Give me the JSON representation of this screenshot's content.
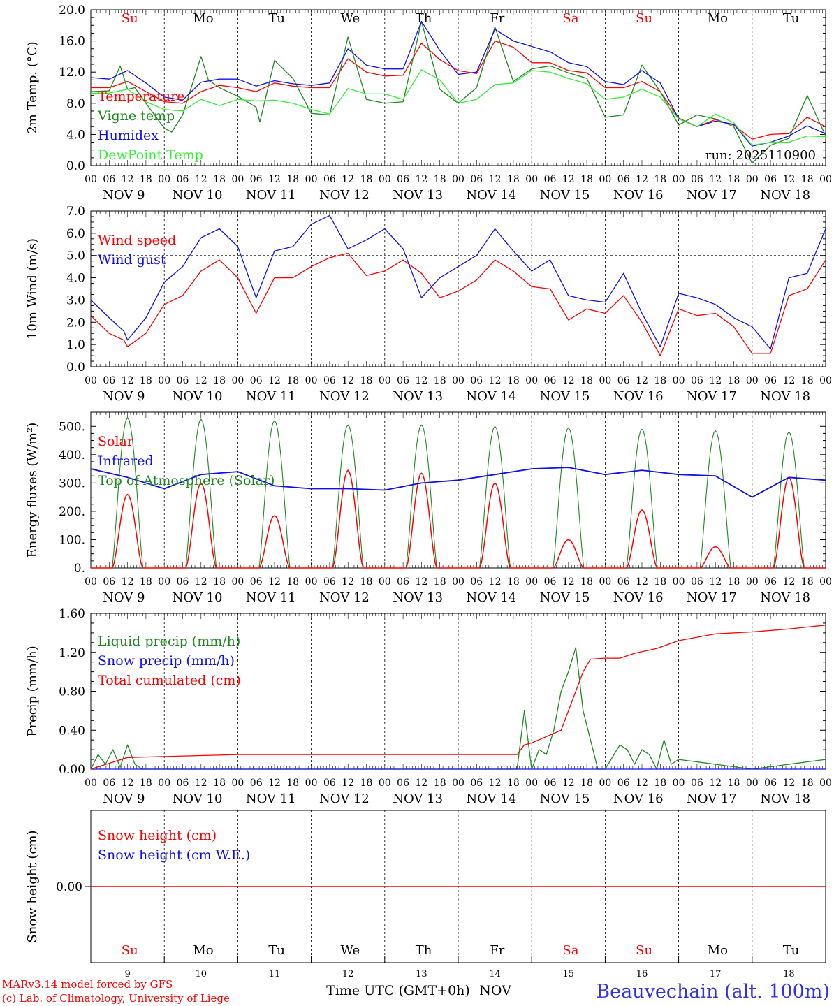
{
  "colors": {
    "red": "#ff0000",
    "darkgreen": "#1f8a1f",
    "blue": "#1010ee",
    "lightgreen": "#33ee33",
    "black": "#000000",
    "station": "#3030ee"
  },
  "days": [
    "Su",
    "Mo",
    "Tu",
    "We",
    "Th",
    "Fr",
    "Sa",
    "Su",
    "Mo",
    "Tu"
  ],
  "weekend_flags": [
    true,
    false,
    false,
    false,
    false,
    false,
    true,
    true,
    false,
    false
  ],
  "date_labels": [
    "NOV  9",
    "NOV 10",
    "NOV 11",
    "NOV 12",
    "NOV 13",
    "NOV 14",
    "NOV 15",
    "NOV 16",
    "NOV 17",
    "NOV 18"
  ],
  "hour_ticks": [
    "00",
    "06",
    "12",
    "18"
  ],
  "bottom_days": [
    "9",
    "10",
    "11",
    "12",
    "13",
    "14",
    "15",
    "16",
    "17",
    "18"
  ],
  "run_label": "run: 2025110900",
  "footer": {
    "model": "MARv3.14 model forced by GFS",
    "lab": "(c) Lab. of Climatology, University of Liege",
    "axis": "Time UTC (GMT+0h)",
    "month": "NOV",
    "station": "Beauvechain (alt. 100m)"
  },
  "chart_data": [
    {
      "id": "temp",
      "type": "line",
      "ylabel": "2m Temp. (°C)",
      "ylim": [
        0,
        20
      ],
      "yticks": [
        "0.0",
        "4.0",
        "8.0",
        "12.0",
        "16.0",
        "20.0"
      ],
      "x_unit": "days since Nov 9 00 UTC",
      "xlim": [
        0,
        10
      ],
      "series": [
        {
          "name": "Temperature",
          "color": "red",
          "x": [
            0,
            0.25,
            0.5,
            0.75,
            1,
            1.25,
            1.5,
            1.75,
            2,
            2.25,
            2.5,
            2.75,
            3,
            3.25,
            3.5,
            3.75,
            4,
            4.25,
            4.5,
            4.75,
            5,
            5.25,
            5.5,
            5.75,
            6,
            6.25,
            6.5,
            6.75,
            7,
            7.25,
            7.5,
            7.75,
            8,
            8.25,
            8.5,
            8.75,
            9,
            9.25,
            9.5,
            9.75,
            10
          ],
          "y": [
            10,
            10,
            10.8,
            9.5,
            8.2,
            8,
            9.5,
            10.3,
            10,
            9.5,
            10.6,
            10.2,
            10,
            10,
            13.7,
            12,
            11.5,
            11.6,
            15.7,
            13.6,
            12.2,
            11.8,
            16,
            15.2,
            13.2,
            13.2,
            12.2,
            11.9,
            10,
            10,
            10.8,
            9.5,
            6.1,
            5,
            5.9,
            5.2,
            3.4,
            4,
            4.1,
            6.2,
            5
          ]
        },
        {
          "name": "Vigne temp",
          "color": "darkgreen",
          "x": [
            0,
            0.25,
            0.4,
            0.5,
            0.6,
            0.75,
            1,
            1.1,
            1.25,
            1.5,
            1.6,
            1.75,
            2,
            2.25,
            2.3,
            2.5,
            2.75,
            3,
            3.25,
            3.5,
            3.75,
            4,
            4.25,
            4.5,
            4.75,
            5,
            5.25,
            5.5,
            5.75,
            6,
            6.25,
            6.5,
            6.75,
            7,
            7.25,
            7.5,
            7.75,
            8,
            8.25,
            8.5,
            8.75,
            9,
            9.25,
            9.5,
            9.75,
            10
          ],
          "y": [
            9.5,
            9.6,
            12.8,
            9.8,
            10,
            8,
            4.8,
            4.3,
            6.5,
            14,
            11,
            10,
            8.9,
            7.5,
            5.6,
            13.5,
            11.2,
            6.7,
            6.5,
            16.5,
            8.5,
            8,
            8.2,
            18.5,
            9.8,
            8,
            10,
            17.8,
            10.8,
            12.4,
            12.8,
            11.9,
            11.2,
            6.2,
            6.5,
            12.9,
            9.5,
            5.2,
            6.5,
            6,
            5,
            0.3,
            2.6,
            3.5,
            9,
            3.8
          ]
        },
        {
          "name": "Humidex",
          "color": "blue",
          "x": [
            0,
            0.25,
            0.5,
            0.75,
            1,
            1.25,
            1.5,
            1.75,
            2,
            2.25,
            2.5,
            2.75,
            3,
            3.25,
            3.5,
            3.75,
            4,
            4.25,
            4.5,
            4.75,
            5,
            5.25,
            5.5,
            5.75,
            6,
            6.25,
            6.5,
            6.75,
            7,
            7.25,
            7.5,
            7.75,
            8,
            8.25,
            8.5,
            8.75,
            9,
            9.25,
            9.5,
            9.75,
            10
          ],
          "y": [
            11.3,
            11.1,
            12.2,
            10.6,
            8.8,
            8.4,
            10.7,
            11.1,
            11.1,
            10.2,
            10.9,
            10.5,
            10.3,
            10.6,
            15,
            12.9,
            12.4,
            12.4,
            18.5,
            14.8,
            11.7,
            12,
            17.5,
            16,
            15.3,
            14.6,
            13.2,
            12.7,
            10.8,
            10.4,
            12.2,
            10.6,
            6,
            5,
            5.7,
            5.3,
            2.5,
            3,
            3.8,
            5.1,
            4.1
          ]
        },
        {
          "name": "DewPoint Temp",
          "color": "lightgreen",
          "x": [
            0,
            0.25,
            0.5,
            0.75,
            1,
            1.25,
            1.5,
            1.75,
            2,
            2.25,
            2.5,
            2.75,
            3,
            3.25,
            3.5,
            3.75,
            4,
            4.25,
            4.5,
            4.75,
            5,
            5.25,
            5.5,
            5.75,
            6,
            6.25,
            6.5,
            6.75,
            7,
            7.25,
            7.5,
            7.75,
            8,
            8.25,
            8.5,
            8.75,
            9,
            9.25,
            9.5,
            9.75,
            10
          ],
          "y": [
            9.3,
            9.3,
            9.8,
            8.2,
            7.2,
            7,
            8.5,
            7.7,
            8.5,
            8.3,
            8.4,
            8,
            7.2,
            6.6,
            9.9,
            9.2,
            9.2,
            8.5,
            12.3,
            11,
            8,
            8.5,
            10.4,
            10.6,
            12.2,
            12,
            11.2,
            10.5,
            8.5,
            8.8,
            9.8,
            8.8,
            6,
            5,
            6.6,
            5.5,
            2.6,
            3,
            3,
            3.8,
            3.7
          ]
        }
      ],
      "legend": [
        "Temperature",
        "Vigne temp",
        "Humidex",
        "DewPoint Temp"
      ]
    },
    {
      "id": "wind",
      "type": "line",
      "ylabel": "10m Wind (m/s)",
      "ylim": [
        0,
        7
      ],
      "yticks": [
        "0.0",
        "1.0",
        "2.0",
        "3.0",
        "4.0",
        "5.0",
        "6.0",
        "7.0"
      ],
      "xlim": [
        0,
        10
      ],
      "reference_line": 5,
      "series": [
        {
          "name": "Wind speed",
          "color": "red",
          "x": [
            0,
            0.25,
            0.45,
            0.5,
            0.75,
            1,
            1.25,
            1.5,
            1.75,
            2,
            2.25,
            2.5,
            2.75,
            3,
            3.25,
            3.5,
            3.75,
            4,
            4.25,
            4.5,
            4.75,
            5,
            5.25,
            5.5,
            5.75,
            6,
            6.25,
            6.5,
            6.75,
            7,
            7.25,
            7.5,
            7.75,
            8,
            8.25,
            8.5,
            8.75,
            9,
            9.25,
            9.5,
            9.75,
            10
          ],
          "y": [
            2.3,
            1.5,
            1.2,
            0.9,
            1.5,
            2.8,
            3.2,
            4.3,
            4.8,
            4,
            2.4,
            4,
            4,
            4.5,
            4.9,
            5.1,
            4.1,
            4.3,
            4.8,
            4.2,
            3.1,
            3.4,
            3.9,
            4.8,
            4.3,
            3.6,
            3.5,
            2.1,
            2.6,
            2.4,
            3.2,
            2,
            0.5,
            2.6,
            2.3,
            2.4,
            1.8,
            0.6,
            0.6,
            3.2,
            3.5,
            4.8
          ]
        },
        {
          "name": "Wind gust",
          "color": "blue",
          "x": [
            0,
            0.25,
            0.45,
            0.5,
            0.75,
            1,
            1.25,
            1.5,
            1.75,
            2,
            2.25,
            2.5,
            2.75,
            3,
            3.25,
            3.5,
            3.75,
            4,
            4.25,
            4.5,
            4.75,
            5,
            5.25,
            5.5,
            5.75,
            6,
            6.25,
            6.5,
            6.75,
            7,
            7.25,
            7.5,
            7.75,
            8,
            8.25,
            8.5,
            8.75,
            9,
            9.25,
            9.5,
            9.75,
            10
          ],
          "y": [
            3,
            2.2,
            1.6,
            1.2,
            2.2,
            3.8,
            4.5,
            5.8,
            6.2,
            5.4,
            3.1,
            5.2,
            5.4,
            6.4,
            6.8,
            5.3,
            5.7,
            6.2,
            5.3,
            3.1,
            4,
            4.5,
            5,
            6.2,
            5.2,
            4.3,
            4.8,
            3.2,
            3,
            2.9,
            4.2,
            2.4,
            0.9,
            3.3,
            3.1,
            2.8,
            2.2,
            1.8,
            0.8,
            4,
            4.2,
            6.2
          ]
        }
      ],
      "legend": [
        "Wind speed",
        "Wind gust"
      ]
    },
    {
      "id": "flux",
      "type": "line",
      "ylabel": "Energy fluxes (W/m²)",
      "ylim": [
        0,
        550
      ],
      "yticks": [
        "0.",
        "100.",
        "200.",
        "300.",
        "400.",
        "500."
      ],
      "xlim": [
        0,
        10
      ],
      "solar_peaks": [
        260,
        300,
        185,
        345,
        335,
        300,
        100,
        205,
        75,
        320
      ],
      "toa_peaks": [
        530,
        525,
        520,
        505,
        505,
        500,
        495,
        490,
        485,
        480
      ],
      "series": [
        {
          "name": "Solar",
          "color": "red"
        },
        {
          "name": "Infrared",
          "color": "blue",
          "x": [
            0,
            0.5,
            1,
            1.5,
            2,
            2.5,
            3,
            3.5,
            4,
            4.5,
            5,
            5.5,
            6,
            6.5,
            7,
            7.5,
            8,
            8.5,
            9,
            9.5,
            10
          ],
          "y": [
            350,
            320,
            280,
            330,
            340,
            290,
            280,
            280,
            275,
            300,
            310,
            330,
            350,
            355,
            330,
            345,
            330,
            325,
            250,
            320,
            310
          ]
        },
        {
          "name": "Top of Atmosphere (Solar)",
          "color": "darkgreen"
        }
      ],
      "legend": [
        "Solar",
        "Infrared",
        "Top of Atmosphere (Solar)"
      ]
    },
    {
      "id": "precip",
      "type": "line",
      "ylabel": "Precip (mm/h)",
      "ylim": [
        0,
        1.6
      ],
      "yticks": [
        "0.00",
        "0.40",
        "0.80",
        "1.20",
        "1.60"
      ],
      "xlim": [
        0,
        10
      ],
      "series": [
        {
          "name": "Liquid precip (mm/h)",
          "color": "darkgreen",
          "x": [
            0,
            0.1,
            0.2,
            0.3,
            0.4,
            0.5,
            0.6,
            0.7,
            0.8,
            1,
            2,
            3,
            4,
            5,
            5.8,
            5.9,
            5.95,
            6,
            6.1,
            6.2,
            6.3,
            6.4,
            6.5,
            6.6,
            6.7,
            6.8,
            6.9,
            7,
            7.2,
            7.3,
            7.4,
            7.5,
            7.6,
            7.7,
            7.8,
            7.9,
            8,
            8.5,
            9,
            9.5,
            10
          ],
          "y": [
            0,
            0.15,
            0.05,
            0.2,
            0.02,
            0.25,
            0.05,
            0,
            0,
            0,
            0,
            0,
            0,
            0,
            0,
            0.6,
            0.3,
            0,
            0.2,
            0.15,
            0.4,
            0.8,
            1.0,
            1.25,
            0.6,
            0.3,
            0,
            0,
            0.25,
            0.2,
            0.05,
            0.2,
            0.15,
            0,
            0.3,
            0.05,
            0.1,
            0.05,
            0,
            0.05,
            0.1
          ]
        },
        {
          "name": "Snow precip (mm/h)",
          "color": "blue",
          "x": [
            0,
            10
          ],
          "y": [
            0,
            0
          ]
        },
        {
          "name": "Total cumulated (cm)",
          "color": "red",
          "x": [
            0,
            0.5,
            1,
            2,
            3,
            4,
            5,
            5.8,
            5.9,
            6,
            6.4,
            6.7,
            6.8,
            7,
            7.2,
            7.4,
            7.7,
            8,
            8.5,
            9,
            9.5,
            10
          ],
          "y": [
            0,
            0.12,
            0.13,
            0.15,
            0.15,
            0.15,
            0.15,
            0.15,
            0.25,
            0.27,
            0.4,
            1.0,
            1.13,
            1.14,
            1.14,
            1.19,
            1.24,
            1.32,
            1.39,
            1.41,
            1.44,
            1.48
          ]
        }
      ],
      "legend": [
        "Liquid precip (mm/h)",
        "Snow precip (mm/h)",
        "Total cumulated (cm)"
      ]
    },
    {
      "id": "snow",
      "type": "line",
      "ylabel": "Snow height (cm)",
      "ylim": [
        -1,
        1
      ],
      "yticks_major": [
        "0.00"
      ],
      "xlim": [
        0,
        10
      ],
      "series": [
        {
          "name": "Snow height (cm)",
          "color": "red",
          "x": [
            0,
            10
          ],
          "y": [
            0,
            0
          ]
        },
        {
          "name": "Snow height (cm W.E.)",
          "color": "blue"
        }
      ],
      "legend": [
        "Snow height (cm)",
        "Snow height (cm W.E.)"
      ]
    }
  ]
}
